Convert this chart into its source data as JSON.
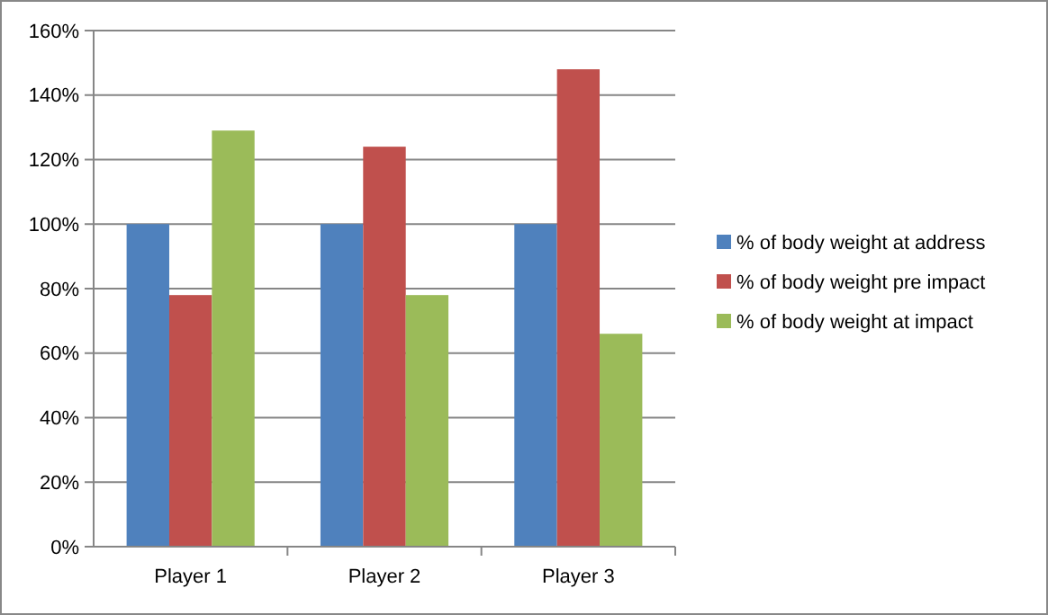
{
  "chart_data": {
    "type": "bar",
    "categories": [
      "Player 1",
      "Player 2",
      "Player 3"
    ],
    "series": [
      {
        "name": "% of body weight at address",
        "color": "#4f81bd",
        "values": [
          100,
          100,
          100
        ]
      },
      {
        "name": "% of body weight pre impact",
        "color": "#c0504d",
        "values": [
          78,
          124,
          148
        ]
      },
      {
        "name": "% of body weight at impact",
        "color": "#9bbb59",
        "values": [
          129,
          78,
          66
        ]
      }
    ],
    "ylim": [
      0,
      160
    ],
    "yticks": [
      {
        "value": 0,
        "label": "0%"
      },
      {
        "value": 20,
        "label": "20%"
      },
      {
        "value": 40,
        "label": "40%"
      },
      {
        "value": 60,
        "label": "60%"
      },
      {
        "value": 80,
        "label": "80%"
      },
      {
        "value": 100,
        "label": "100%"
      },
      {
        "value": 120,
        "label": "120%"
      },
      {
        "value": 140,
        "label": "140%"
      },
      {
        "value": 160,
        "label": "160%"
      }
    ],
    "grid": "y",
    "legend": "right"
  }
}
